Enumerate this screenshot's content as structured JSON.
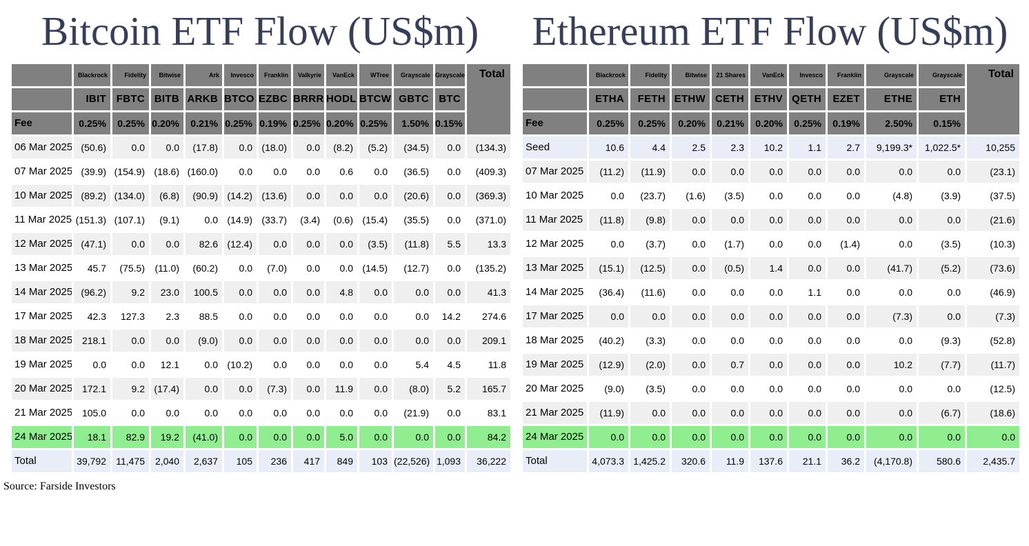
{
  "page": {
    "source_label": "Source: Farside Investors"
  },
  "colors": {
    "header_gray": "#808080",
    "row_stripe": "#EFEFEF",
    "highlight_green": "#90EE90",
    "highlight_blue": "#E9EDF8",
    "negative_red": "#FF0000",
    "title_navy": "#373E58"
  },
  "chart_data": [
    {
      "type": "table",
      "title": "Bitcoin ETF Flow (US$m)",
      "total_column_label": "Total",
      "fee_row_label": "Fee",
      "issuers": [
        "Blackrock",
        "Fidelity",
        "Bitwise",
        "Ark",
        "Invesco",
        "Franklin",
        "Valkyrie",
        "VanEck",
        "WTree",
        "Grayscale",
        "Grayscale"
      ],
      "tickers": [
        "IBIT",
        "FBTC",
        "BITB",
        "ARKB",
        "BTCO",
        "EZBC",
        "BRRR",
        "HODL",
        "BTCW",
        "GBTC",
        "BTC"
      ],
      "fees": [
        "0.25%",
        "0.25%",
        "0.20%",
        "0.21%",
        "0.25%",
        "0.19%",
        "0.25%",
        "0.20%",
        "0.25%",
        "1.50%",
        "0.15%"
      ],
      "rows": [
        {
          "label": "06 Mar 2025",
          "style": "stripe",
          "values": [
            "(50.6)",
            "0.0",
            "0.0",
            "(17.8)",
            "0.0",
            "(18.0)",
            "0.0",
            "(8.2)",
            "(5.2)",
            "(34.5)",
            "0.0"
          ],
          "total": "(134.3)"
        },
        {
          "label": "07 Mar 2025",
          "style": "plain",
          "values": [
            "(39.9)",
            "(154.9)",
            "(18.6)",
            "(160.0)",
            "0.0",
            "0.0",
            "0.0",
            "0.6",
            "0.0",
            "(36.5)",
            "0.0"
          ],
          "total": "(409.3)"
        },
        {
          "label": "10 Mar 2025",
          "style": "stripe",
          "values": [
            "(89.2)",
            "(134.0)",
            "(6.8)",
            "(90.9)",
            "(14.2)",
            "(13.6)",
            "0.0",
            "0.0",
            "0.0",
            "(20.6)",
            "0.0"
          ],
          "total": "(369.3)"
        },
        {
          "label": "11 Mar 2025",
          "style": "plain",
          "values": [
            "(151.3)",
            "(107.1)",
            "(9.1)",
            "0.0",
            "(14.9)",
            "(33.7)",
            "(3.4)",
            "(0.6)",
            "(15.4)",
            "(35.5)",
            "0.0"
          ],
          "total": "(371.0)"
        },
        {
          "label": "12 Mar 2025",
          "style": "stripe",
          "values": [
            "(47.1)",
            "0.0",
            "0.0",
            "82.6",
            "(12.4)",
            "0.0",
            "0.0",
            "0.0",
            "(3.5)",
            "(11.8)",
            "5.5"
          ],
          "total": "13.3"
        },
        {
          "label": "13 Mar 2025",
          "style": "plain",
          "values": [
            "45.7",
            "(75.5)",
            "(11.0)",
            "(60.2)",
            "0.0",
            "(7.0)",
            "0.0",
            "0.0",
            "(14.5)",
            "(12.7)",
            "0.0"
          ],
          "total": "(135.2)"
        },
        {
          "label": "14 Mar 2025",
          "style": "stripe",
          "values": [
            "(96.2)",
            "9.2",
            "23.0",
            "100.5",
            "0.0",
            "0.0",
            "0.0",
            "4.8",
            "0.0",
            "0.0",
            "0.0"
          ],
          "total": "41.3"
        },
        {
          "label": "17 Mar 2025",
          "style": "plain",
          "values": [
            "42.3",
            "127.3",
            "2.3",
            "88.5",
            "0.0",
            "0.0",
            "0.0",
            "0.0",
            "0.0",
            "0.0",
            "14.2"
          ],
          "total": "274.6"
        },
        {
          "label": "18 Mar 2025",
          "style": "stripe",
          "values": [
            "218.1",
            "0.0",
            "0.0",
            "(9.0)",
            "0.0",
            "0.0",
            "0.0",
            "0.0",
            "0.0",
            "0.0",
            "0.0"
          ],
          "total": "209.1"
        },
        {
          "label": "19 Mar 2025",
          "style": "plain",
          "values": [
            "0.0",
            "0.0",
            "12.1",
            "0.0",
            "(10.2)",
            "0.0",
            "0.0",
            "0.0",
            "0.0",
            "5.4",
            "4.5"
          ],
          "total": "11.8"
        },
        {
          "label": "20 Mar 2025",
          "style": "stripe",
          "values": [
            "172.1",
            "9.2",
            "(17.4)",
            "0.0",
            "0.0",
            "(7.3)",
            "0.0",
            "11.9",
            "0.0",
            "(8.0)",
            "5.2"
          ],
          "total": "165.7"
        },
        {
          "label": "21 Mar 2025",
          "style": "plain",
          "values": [
            "105.0",
            "0.0",
            "0.0",
            "0.0",
            "0.0",
            "0.0",
            "0.0",
            "0.0",
            "0.0",
            "(21.9)",
            "0.0"
          ],
          "total": "83.1"
        },
        {
          "label": "24 Mar 2025",
          "style": "green",
          "values": [
            "18.1",
            "82.9",
            "19.2",
            "(41.0)",
            "0.0",
            "0.0",
            "0.0",
            "5.0",
            "0.0",
            "0.0",
            "0.0"
          ],
          "total": "84.2"
        },
        {
          "label": "Total",
          "style": "blue",
          "values": [
            "39,792",
            "11,475",
            "2,040",
            "2,637",
            "105",
            "236",
            "417",
            "849",
            "103",
            "(22,526)",
            "1,093"
          ],
          "total": "36,222"
        }
      ]
    },
    {
      "type": "table",
      "title": "Ethereum ETF Flow (US$m)",
      "total_column_label": "Total",
      "fee_row_label": "Fee",
      "issuers": [
        "Blackrock",
        "Fidelity",
        "Bitwise",
        "21 Shares",
        "VanEck",
        "Invesco",
        "Franklin",
        "Grayscale",
        "Grayscale"
      ],
      "tickers": [
        "ETHA",
        "FETH",
        "ETHW",
        "CETH",
        "ETHV",
        "QETH",
        "EZET",
        "ETHE",
        "ETH"
      ],
      "fees": [
        "0.25%",
        "0.25%",
        "0.20%",
        "0.21%",
        "0.20%",
        "0.25%",
        "0.19%",
        "2.50%",
        "0.15%"
      ],
      "rows": [
        {
          "label": "Seed",
          "style": "blue",
          "values": [
            "10.6",
            "4.4",
            "2.5",
            "2.3",
            "10.2",
            "1.1",
            "2.7",
            "9,199.3*",
            "1,022.5*"
          ],
          "total": "10,255"
        },
        {
          "label": "07 Mar 2025",
          "style": "stripe",
          "values": [
            "(11.2)",
            "(11.9)",
            "0.0",
            "0.0",
            "0.0",
            "0.0",
            "0.0",
            "0.0",
            "0.0"
          ],
          "total": "(23.1)"
        },
        {
          "label": "10 Mar 2025",
          "style": "plain",
          "values": [
            "0.0",
            "(23.7)",
            "(1.6)",
            "(3.5)",
            "0.0",
            "0.0",
            "0.0",
            "(4.8)",
            "(3.9)"
          ],
          "total": "(37.5)"
        },
        {
          "label": "11 Mar 2025",
          "style": "stripe",
          "values": [
            "(11.8)",
            "(9.8)",
            "0.0",
            "0.0",
            "0.0",
            "0.0",
            "0.0",
            "0.0",
            "0.0"
          ],
          "total": "(21.6)"
        },
        {
          "label": "12 Mar 2025",
          "style": "plain",
          "values": [
            "0.0",
            "(3.7)",
            "0.0",
            "(1.7)",
            "0.0",
            "0.0",
            "(1.4)",
            "0.0",
            "(3.5)"
          ],
          "total": "(10.3)"
        },
        {
          "label": "13 Mar 2025",
          "style": "stripe",
          "values": [
            "(15.1)",
            "(12.5)",
            "0.0",
            "(0.5)",
            "1.4",
            "0.0",
            "0.0",
            "(41.7)",
            "(5.2)"
          ],
          "total": "(73.6)"
        },
        {
          "label": "14 Mar 2025",
          "style": "plain",
          "values": [
            "(36.4)",
            "(11.6)",
            "0.0",
            "0.0",
            "0.0",
            "1.1",
            "0.0",
            "0.0",
            "0.0"
          ],
          "total": "(46.9)"
        },
        {
          "label": "17 Mar 2025",
          "style": "stripe",
          "values": [
            "0.0",
            "0.0",
            "0.0",
            "0.0",
            "0.0",
            "0.0",
            "0.0",
            "(7.3)",
            "0.0"
          ],
          "total": "(7.3)"
        },
        {
          "label": "18 Mar 2025",
          "style": "plain",
          "values": [
            "(40.2)",
            "(3.3)",
            "0.0",
            "0.0",
            "0.0",
            "0.0",
            "0.0",
            "0.0",
            "(9.3)"
          ],
          "total": "(52.8)"
        },
        {
          "label": "19 Mar 2025",
          "style": "stripe",
          "values": [
            "(12.9)",
            "(2.0)",
            "0.0",
            "0.7",
            "0.0",
            "0.0",
            "0.0",
            "10.2",
            "(7.7)"
          ],
          "total": "(11.7)"
        },
        {
          "label": "20 Mar 2025",
          "style": "plain",
          "values": [
            "(9.0)",
            "(3.5)",
            "0.0",
            "0.0",
            "0.0",
            "0.0",
            "0.0",
            "0.0",
            "0.0"
          ],
          "total": "(12.5)"
        },
        {
          "label": "21 Mar 2025",
          "style": "stripe",
          "values": [
            "(11.9)",
            "0.0",
            "0.0",
            "0.0",
            "0.0",
            "0.0",
            "0.0",
            "0.0",
            "(6.7)"
          ],
          "total": "(18.6)"
        },
        {
          "label": "24 Mar 2025",
          "style": "green",
          "values": [
            "0.0",
            "0.0",
            "0.0",
            "0.0",
            "0.0",
            "0.0",
            "0.0",
            "0.0",
            "0.0"
          ],
          "total": "0.0"
        },
        {
          "label": "Total",
          "style": "blue",
          "values": [
            "4,073.3",
            "1,425.2",
            "320.6",
            "11.9",
            "137.6",
            "21.1",
            "36.2",
            "(4,170.8)",
            "580.6"
          ],
          "total": "2,435.7"
        }
      ]
    }
  ]
}
